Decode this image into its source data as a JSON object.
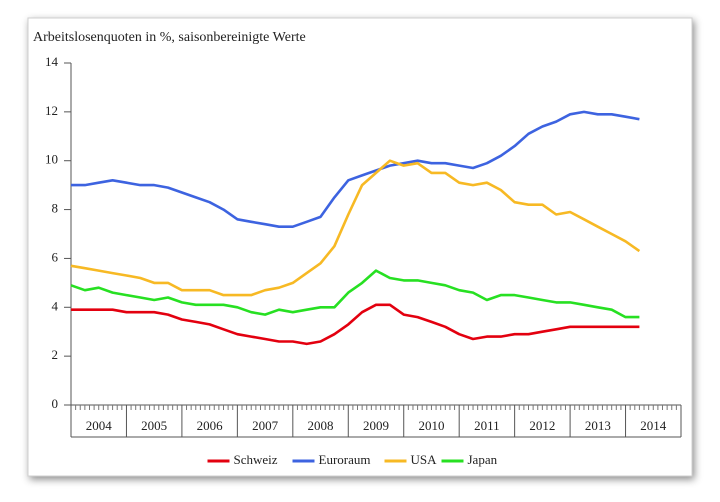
{
  "chart_data": {
    "type": "line",
    "title": "Arbeitslosenquoten in %, saisonbereinigte Werte",
    "categories": [
      "2004",
      "2005",
      "2006",
      "2007",
      "2008",
      "2009",
      "2010",
      "2011",
      "2012",
      "2013",
      "2014"
    ],
    "x": [
      2004,
      2004.25,
      2004.5,
      2004.75,
      2005,
      2005.25,
      2005.5,
      2005.75,
      2006,
      2006.25,
      2006.5,
      2006.75,
      2007,
      2007.25,
      2007.5,
      2007.75,
      2008,
      2008.25,
      2008.5,
      2008.75,
      2009,
      2009.25,
      2009.5,
      2009.75,
      2010,
      2010.25,
      2010.5,
      2010.75,
      2011,
      2011.25,
      2011.5,
      2011.75,
      2012,
      2012.25,
      2012.5,
      2012.75,
      2013,
      2013.25,
      2013.5,
      2013.75,
      2014,
      2014.25
    ],
    "xlim": [
      2004,
      2015
    ],
    "ylim": [
      0,
      14
    ],
    "yticks": [
      0,
      2,
      4,
      6,
      8,
      10,
      12,
      14
    ],
    "series": [
      {
        "name": "Schweiz",
        "color": "#e3000f",
        "values": [
          3.9,
          3.9,
          3.9,
          3.9,
          3.8,
          3.8,
          3.8,
          3.7,
          3.5,
          3.4,
          3.3,
          3.1,
          2.9,
          2.8,
          2.7,
          2.6,
          2.6,
          2.5,
          2.6,
          2.9,
          3.3,
          3.8,
          4.1,
          4.1,
          3.7,
          3.6,
          3.4,
          3.2,
          2.9,
          2.7,
          2.8,
          2.8,
          2.9,
          2.9,
          3.0,
          3.1,
          3.2,
          3.2,
          3.2,
          3.2,
          3.2,
          3.2
        ]
      },
      {
        "name": "Euroraum",
        "color": "#3d63e0",
        "values": [
          9.0,
          9.0,
          9.1,
          9.2,
          9.1,
          9.0,
          9.0,
          8.9,
          8.7,
          8.5,
          8.3,
          8.0,
          7.6,
          7.5,
          7.4,
          7.3,
          7.3,
          7.5,
          7.7,
          8.5,
          9.2,
          9.4,
          9.6,
          9.8,
          9.9,
          10.0,
          9.9,
          9.9,
          9.8,
          9.7,
          9.9,
          10.2,
          10.6,
          11.1,
          11.4,
          11.6,
          11.9,
          12.0,
          11.9,
          11.9,
          11.8,
          11.7
        ]
      },
      {
        "name": "USA",
        "color": "#f7b924",
        "values": [
          5.7,
          5.6,
          5.5,
          5.4,
          5.3,
          5.2,
          5.0,
          5.0,
          4.7,
          4.7,
          4.7,
          4.5,
          4.5,
          4.5,
          4.7,
          4.8,
          5.0,
          5.4,
          5.8,
          6.5,
          7.8,
          9.0,
          9.5,
          10.0,
          9.8,
          9.9,
          9.5,
          9.5,
          9.1,
          9.0,
          9.1,
          8.8,
          8.3,
          8.2,
          8.2,
          7.8,
          7.9,
          7.6,
          7.3,
          7.0,
          6.7,
          6.3
        ]
      },
      {
        "name": "Japan",
        "color": "#27e022",
        "values": [
          4.9,
          4.7,
          4.8,
          4.6,
          4.5,
          4.4,
          4.3,
          4.4,
          4.2,
          4.1,
          4.1,
          4.1,
          4.0,
          3.8,
          3.7,
          3.9,
          3.8,
          3.9,
          4.0,
          4.0,
          4.6,
          5.0,
          5.5,
          5.2,
          5.1,
          5.1,
          5.0,
          4.9,
          4.7,
          4.6,
          4.3,
          4.5,
          4.5,
          4.4,
          4.3,
          4.2,
          4.2,
          4.1,
          4.0,
          3.9,
          3.6,
          3.6
        ]
      }
    ],
    "legend": "bottom"
  }
}
